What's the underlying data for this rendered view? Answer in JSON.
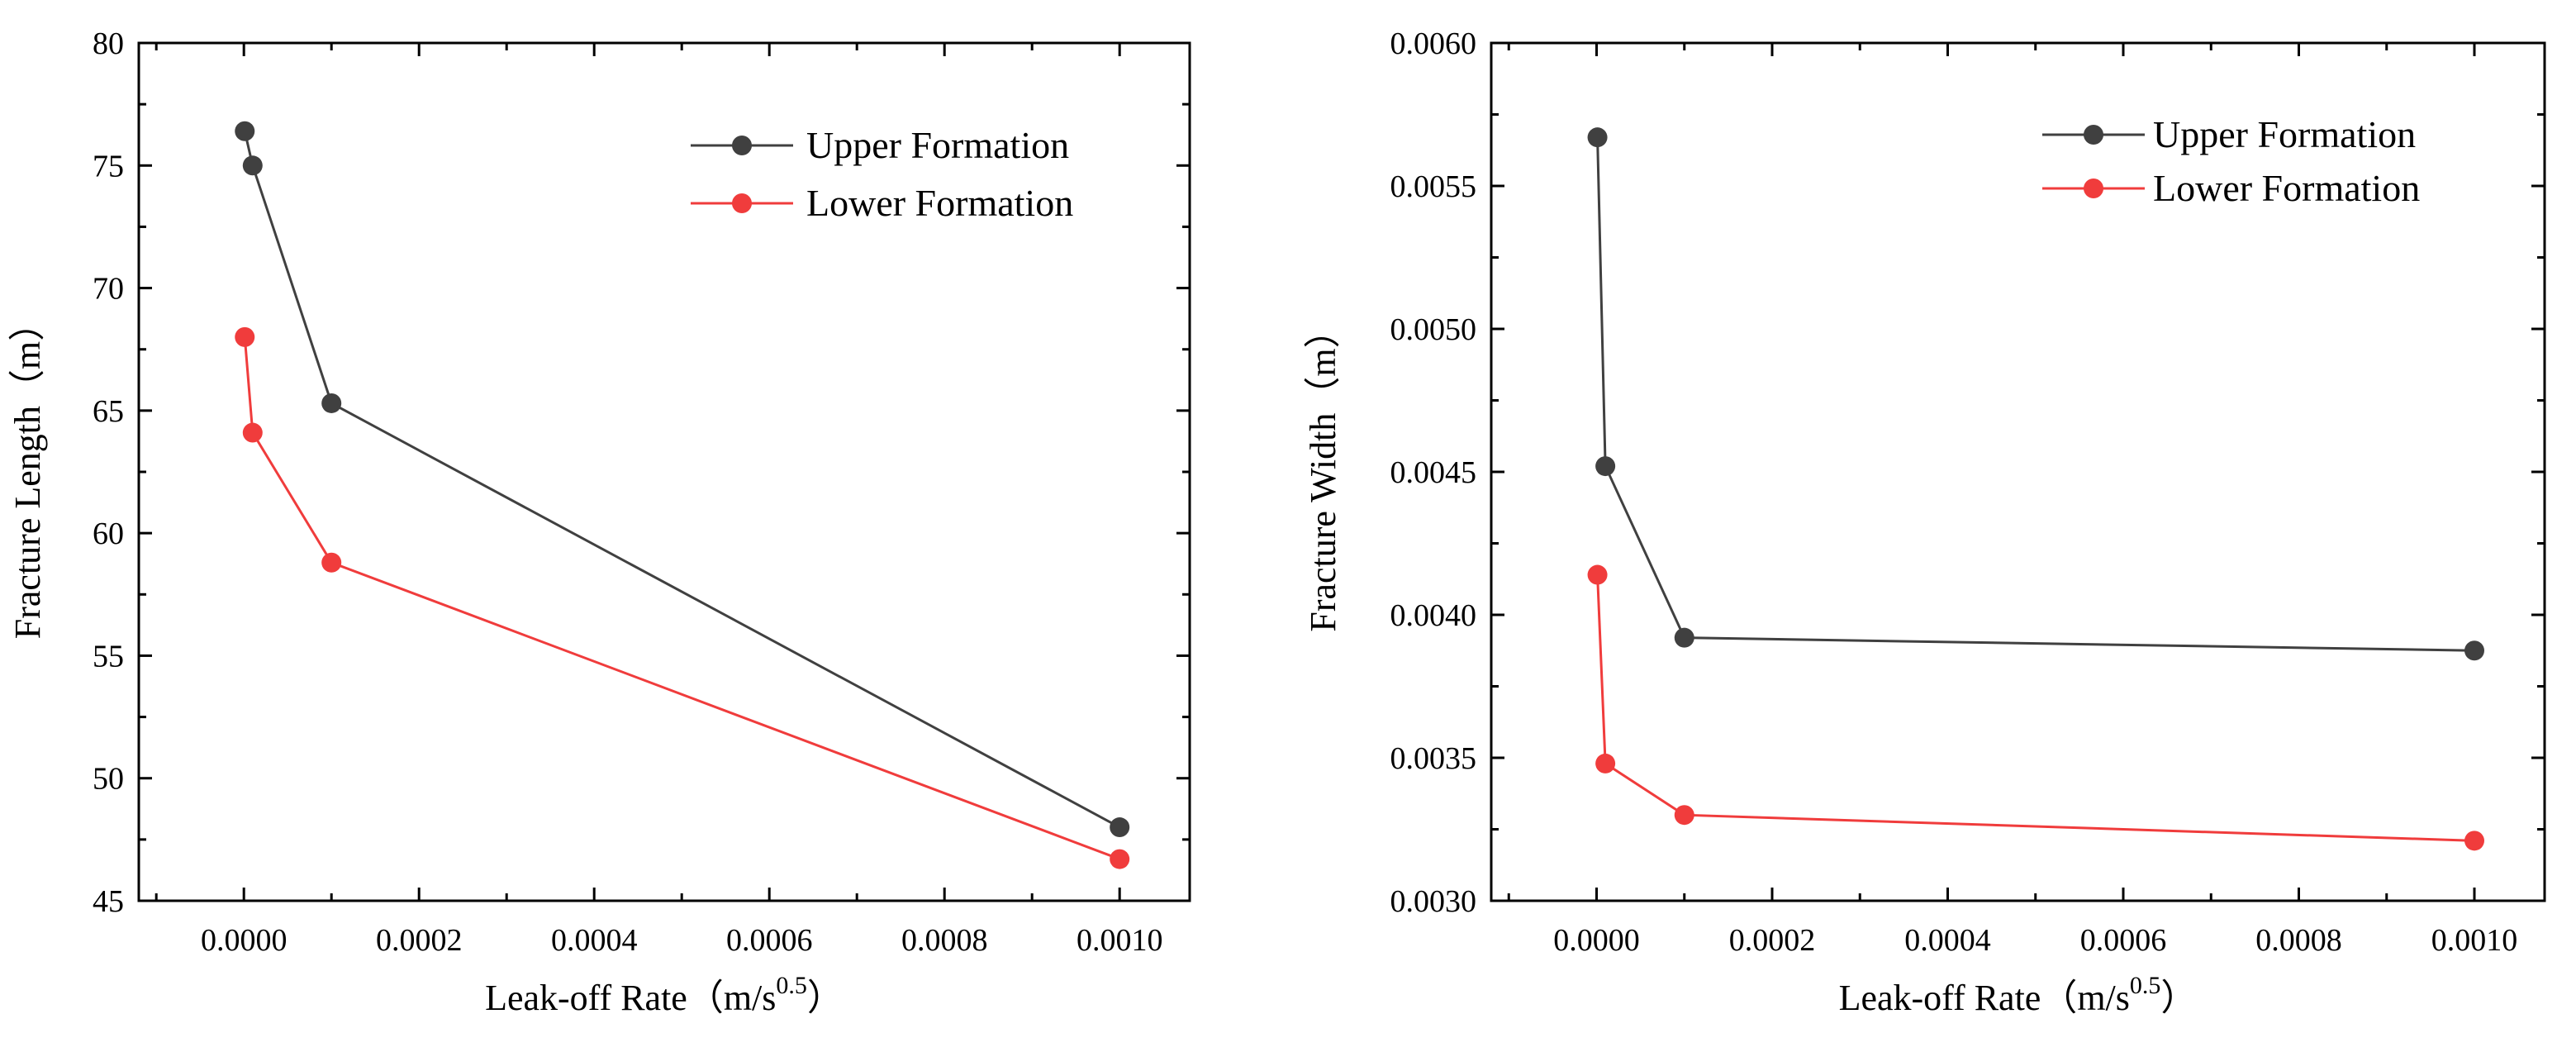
{
  "colors": {
    "upper": "#404040",
    "lower": "#f03c3c",
    "axis": "#000000",
    "background": "#ffffff"
  },
  "chart_data": [
    {
      "type": "line",
      "title": "",
      "xlabel": "Leak-off Rate（m/s",
      "xlabel_superscript": "0.5",
      "xlabel_close": "）",
      "ylabel": "Fracture Length（m）",
      "xlim": [
        -0.00012,
        0.00108
      ],
      "ylim": [
        45,
        80
      ],
      "xticks": [
        0.0,
        0.0002,
        0.0004,
        0.0006,
        0.0008,
        0.001
      ],
      "xtick_labels": [
        "0.0000",
        "0.0002",
        "0.0004",
        "0.0006",
        "0.0008",
        "0.0010"
      ],
      "yticks": [
        45,
        50,
        55,
        60,
        65,
        70,
        75,
        80
      ],
      "ytick_labels": [
        "45",
        "50",
        "55",
        "60",
        "65",
        "70",
        "75",
        "80"
      ],
      "legend_position": "top-right",
      "series": [
        {
          "name": "Upper Formation",
          "color_key": "upper",
          "x": [
            1e-06,
            1e-05,
            0.0001,
            0.001
          ],
          "values": [
            76.4,
            75.0,
            65.3,
            48.0
          ]
        },
        {
          "name": "Lower Formation",
          "color_key": "lower",
          "x": [
            1e-06,
            1e-05,
            0.0001,
            0.001
          ],
          "values": [
            68.0,
            64.1,
            58.8,
            46.7
          ]
        }
      ]
    },
    {
      "type": "line",
      "title": "",
      "xlabel": "Leak-off Rate（m/s",
      "xlabel_superscript": "0.5",
      "xlabel_close": "）",
      "ylabel": "Fracture Width（m）",
      "xlim": [
        -0.00012,
        0.00108
      ],
      "ylim": [
        0.003,
        0.006
      ],
      "xticks": [
        0.0,
        0.0002,
        0.0004,
        0.0006,
        0.0008,
        0.001
      ],
      "xtick_labels": [
        "0.0000",
        "0.0002",
        "0.0004",
        "0.0006",
        "0.0008",
        "0.0010"
      ],
      "yticks": [
        0.003,
        0.0035,
        0.004,
        0.0045,
        0.005,
        0.0055,
        0.006
      ],
      "ytick_labels": [
        "0.0030",
        "0.0035",
        "0.0040",
        "0.0045",
        "0.0050",
        "0.0055",
        "0.0060"
      ],
      "legend_position": "top-right",
      "series": [
        {
          "name": "Upper Formation",
          "color_key": "upper",
          "x": [
            1e-06,
            1e-05,
            0.0001,
            0.001
          ],
          "values": [
            0.00567,
            0.00452,
            0.00392,
            0.003875
          ]
        },
        {
          "name": "Lower Formation",
          "color_key": "lower",
          "x": [
            1e-06,
            1e-05,
            0.0001,
            0.001
          ],
          "values": [
            0.00414,
            0.00348,
            0.0033,
            0.00321
          ]
        }
      ]
    }
  ]
}
